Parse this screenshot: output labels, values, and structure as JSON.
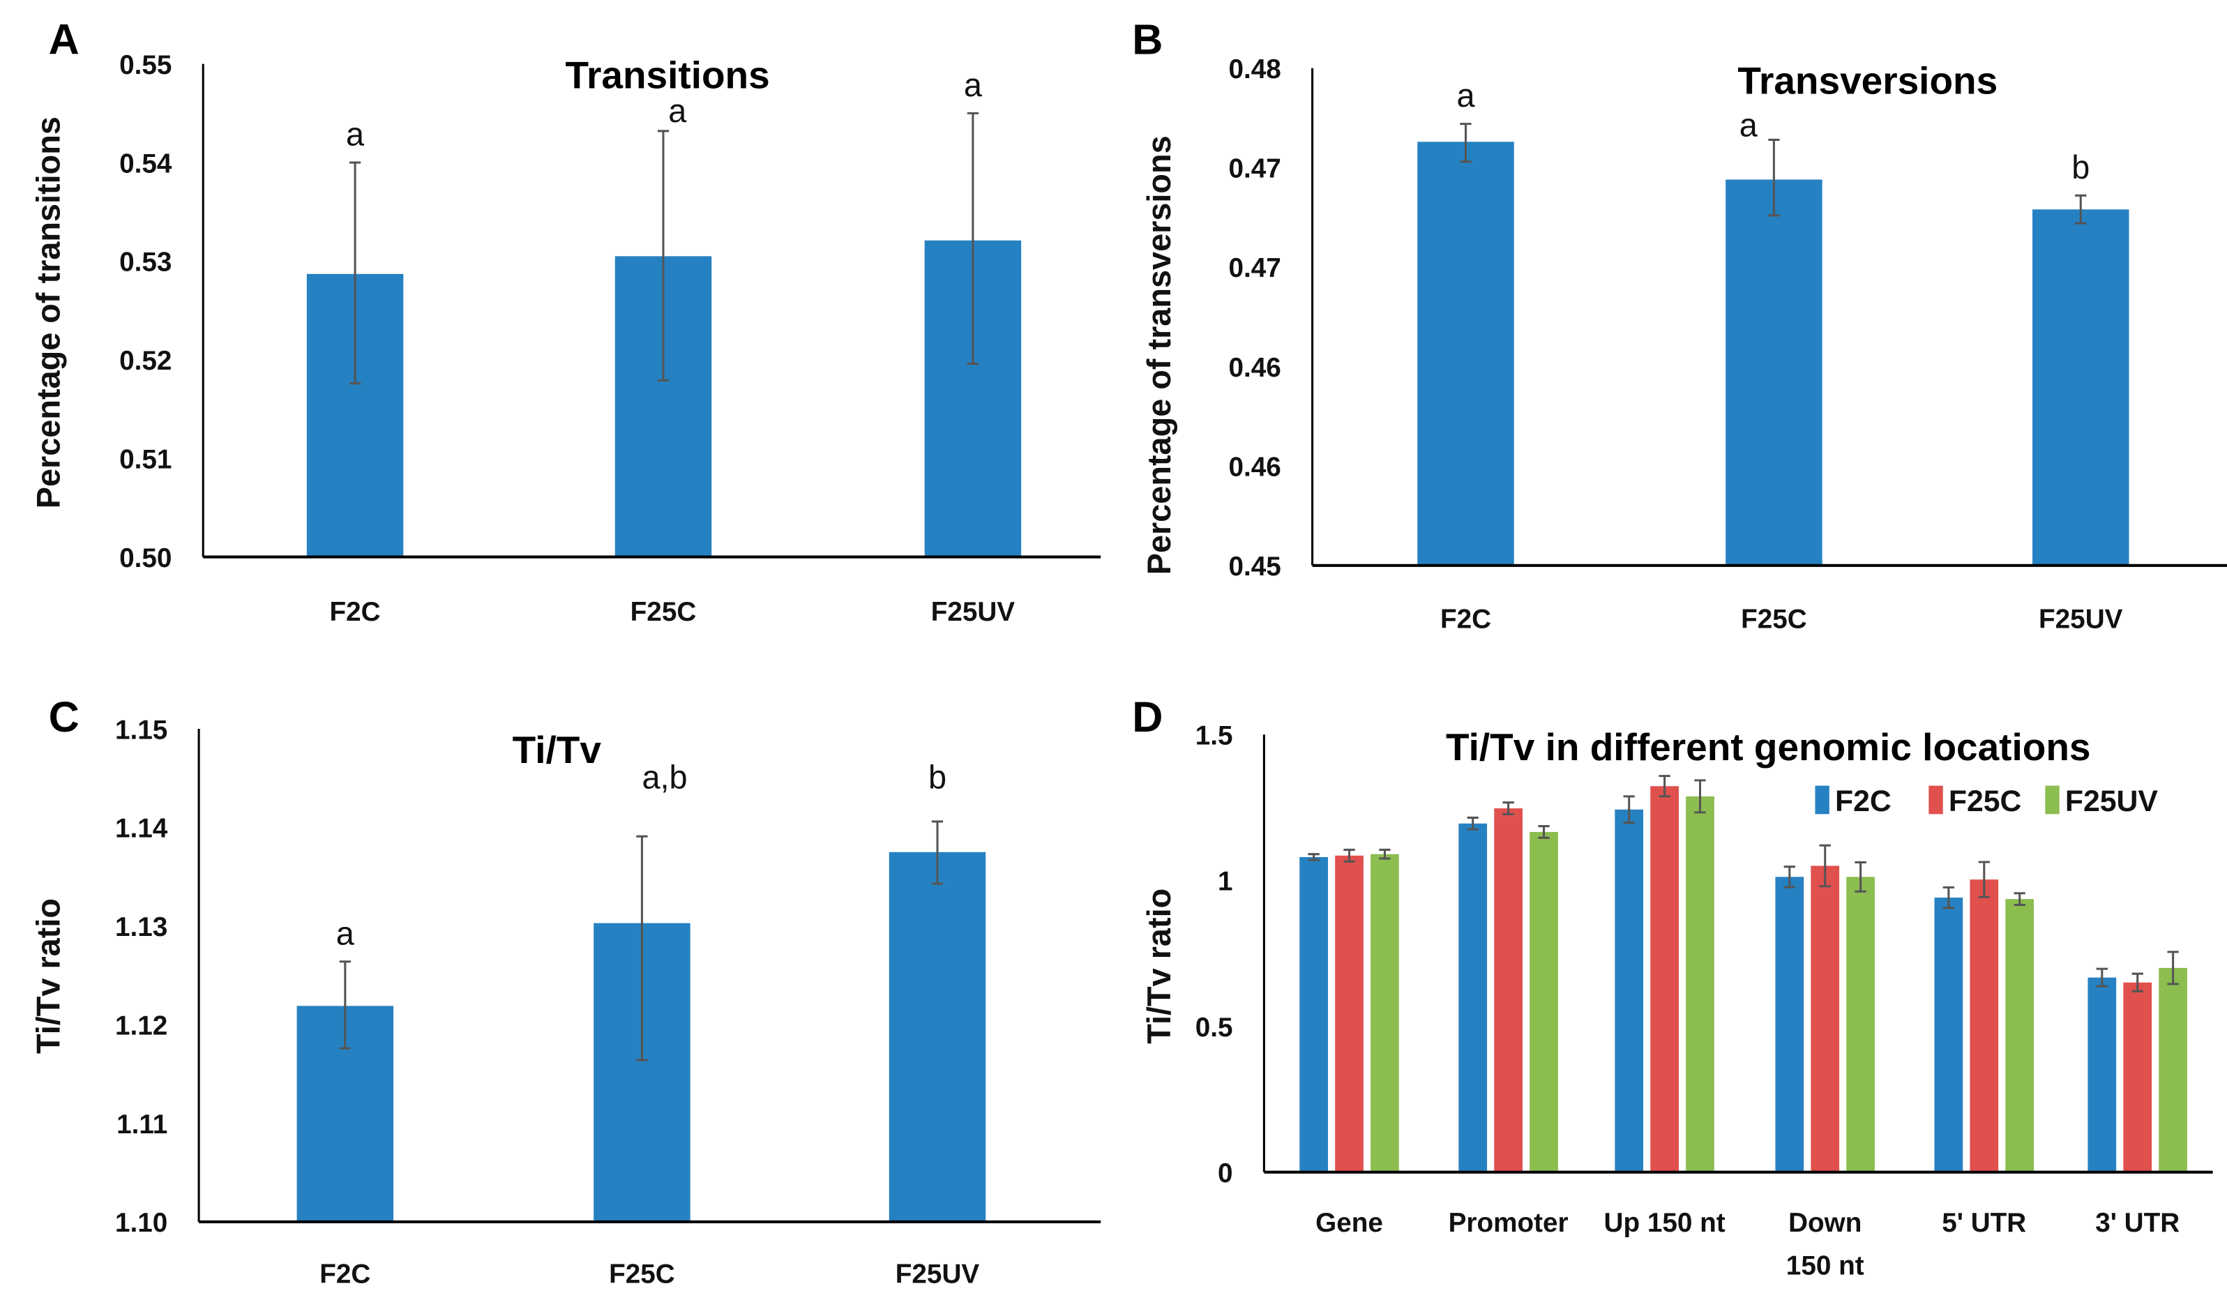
{
  "chart_data": [
    {
      "panel": "A",
      "type": "bar",
      "title": "Transitions",
      "ylabel": "Percentage of transitions",
      "xlabel": "",
      "categories": [
        "F2C",
        "F25C",
        "F25UV"
      ],
      "values": [
        0.5287,
        0.5305,
        0.5321
      ],
      "error_low": [
        0.5176,
        0.5179,
        0.5196
      ],
      "error_high": [
        0.54,
        0.5432,
        0.545
      ],
      "significance": [
        "a",
        "a",
        "a"
      ],
      "ylim": [
        0.5,
        0.55
      ],
      "yticks": [
        "0.50",
        "0.51",
        "0.52",
        "0.53",
        "0.54",
        "0.55"
      ],
      "color": "#2681c2"
    },
    {
      "panel": "B",
      "type": "bar",
      "title": "Transversions",
      "ylabel": "Percentage of transversions",
      "xlabel": "",
      "categories": [
        "F2C",
        "F25C",
        "F25UV"
      ],
      "values": [
        0.4713,
        0.4694,
        0.4679
      ],
      "error_low": [
        0.4703,
        0.4676,
        0.4672
      ],
      "error_high": [
        0.4722,
        0.4714,
        0.4686
      ],
      "significance": [
        "a",
        "a",
        "b"
      ],
      "ylim": [
        0.45,
        0.475
      ],
      "yticks": [
        "0.45",
        "0.46",
        "0.46",
        "0.47",
        "0.47",
        "0.48"
      ],
      "color": "#2681c2"
    },
    {
      "panel": "C",
      "type": "bar",
      "title": "Ti/Tv",
      "ylabel": "Ti/Tv ratio",
      "xlabel": "",
      "categories": [
        "F2C",
        "F25C",
        "F25UV"
      ],
      "values": [
        1.1219,
        1.1303,
        1.1375
      ],
      "error_low": [
        1.1176,
        1.1164,
        1.1343
      ],
      "error_high": [
        1.1264,
        1.1391,
        1.1406
      ],
      "significance": [
        "a",
        "a,b",
        "b"
      ],
      "ylim": [
        1.1,
        1.15
      ],
      "yticks": [
        "1.10",
        "1.11",
        "1.12",
        "1.13",
        "1.14",
        "1.15"
      ],
      "color": "#2681c2"
    },
    {
      "panel": "D",
      "type": "bar",
      "title": "Ti/Tv in different genomic locations",
      "ylabel": "Ti/Tv ratio",
      "xlabel": "",
      "categories": [
        "Gene",
        "Promoter",
        "Up 150 nt",
        "Down 150 nt",
        "5' UTR",
        "3' UTR"
      ],
      "category_lines": [
        [
          "Gene"
        ],
        [
          "Promoter"
        ],
        [
          "Up 150 nt"
        ],
        [
          "Down",
          "150 nt"
        ],
        [
          "5' UTR"
        ],
        [
          "3' UTR"
        ]
      ],
      "ylim": [
        0,
        1.5
      ],
      "yticks": [
        "0",
        "0.5",
        "1",
        "1.5"
      ],
      "legend": "top-right",
      "series": [
        {
          "name": "F2C",
          "color": "#2681c2",
          "values": [
            1.08,
            1.195,
            1.243,
            1.012,
            0.941,
            0.667
          ],
          "errors": [
            0.01,
            0.02,
            0.045,
            0.035,
            0.035,
            0.03
          ]
        },
        {
          "name": "F25C",
          "color": "#e0504d",
          "values": [
            1.085,
            1.247,
            1.323,
            1.05,
            1.003,
            0.65
          ],
          "errors": [
            0.02,
            0.02,
            0.035,
            0.07,
            0.06,
            0.03
          ]
        },
        {
          "name": "F25UV",
          "color": "#8cbd4f",
          "values": [
            1.09,
            1.166,
            1.288,
            1.012,
            0.936,
            0.7
          ],
          "errors": [
            0.015,
            0.02,
            0.055,
            0.05,
            0.02,
            0.055
          ]
        }
      ]
    }
  ]
}
